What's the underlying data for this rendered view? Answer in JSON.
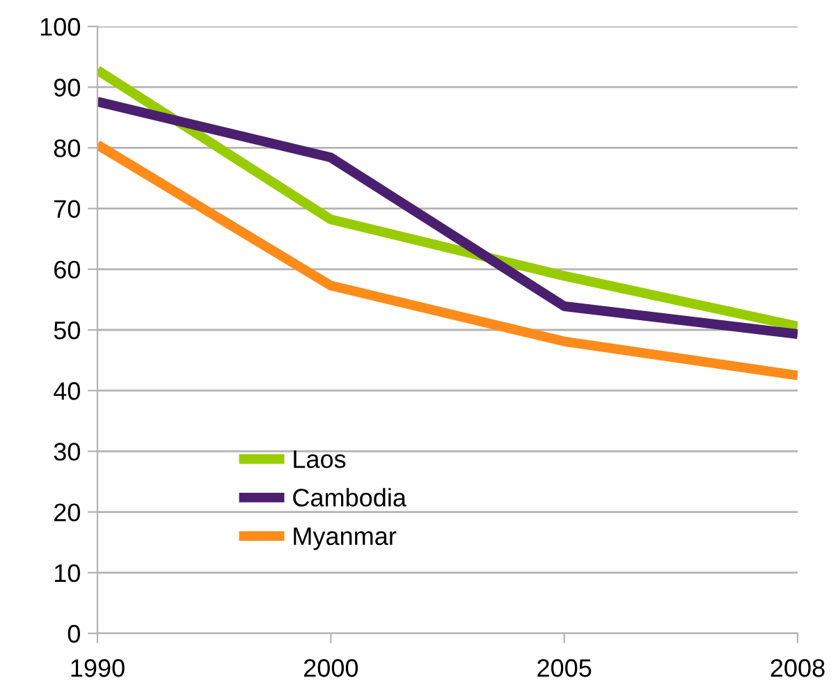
{
  "chart_data": {
    "type": "line",
    "categories": [
      "1990",
      "2000",
      "2005",
      "2008"
    ],
    "series": [
      {
        "name": "Laos",
        "color": "#99cc00",
        "values": [
          92.8,
          68.2,
          58.9,
          50.6
        ]
      },
      {
        "name": "Cambodia",
        "color": "#4b1f6f",
        "values": [
          87.6,
          78.4,
          53.9,
          49.3
        ]
      },
      {
        "name": "Myanmar",
        "color": "#ff8c1a",
        "values": [
          80.5,
          57.3,
          48.1,
          42.5
        ]
      }
    ],
    "ylim": [
      0,
      100
    ],
    "yticks": [
      0,
      10,
      20,
      30,
      40,
      50,
      60,
      70,
      80,
      90,
      100
    ],
    "grid": "y",
    "legend": "bottom left",
    "marker": "none",
    "line_style": "solid"
  }
}
